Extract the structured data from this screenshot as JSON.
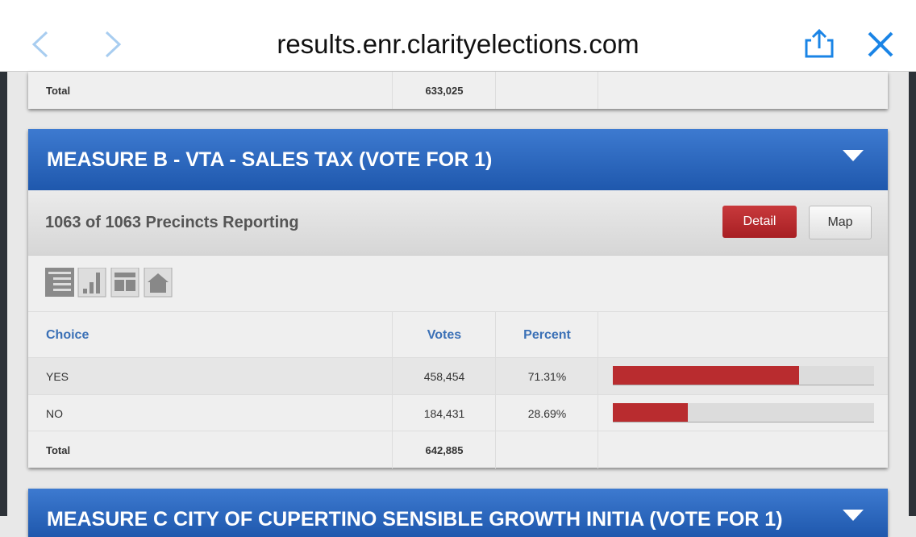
{
  "browser": {
    "url": "results.enr.clarityelections.com"
  },
  "previous_contest": {
    "total_label": "Total",
    "total_votes": "633,025"
  },
  "contest": {
    "title": "MEASURE B - VTA - SALES TAX (VOTE FOR 1)",
    "reporting": "1063 of 1063 Precincts Reporting",
    "buttons": [
      "Detail",
      "Map"
    ],
    "table": {
      "headers": [
        "Choice",
        "Votes",
        "Percent"
      ],
      "rows": [
        {
          "choice": "YES",
          "votes": "458,454",
          "percent": 71.31,
          "percent_label": "71.31%"
        },
        {
          "choice": "NO",
          "votes": "184,431",
          "percent": 28.69,
          "percent_label": "28.69%"
        }
      ],
      "total_label": "Total",
      "total_votes": "642,885"
    }
  },
  "next_contest": {
    "title": "MEASURE C CITY OF CUPERTINO SENSIBLE GROWTH INITIA (VOTE FOR 1)"
  }
}
